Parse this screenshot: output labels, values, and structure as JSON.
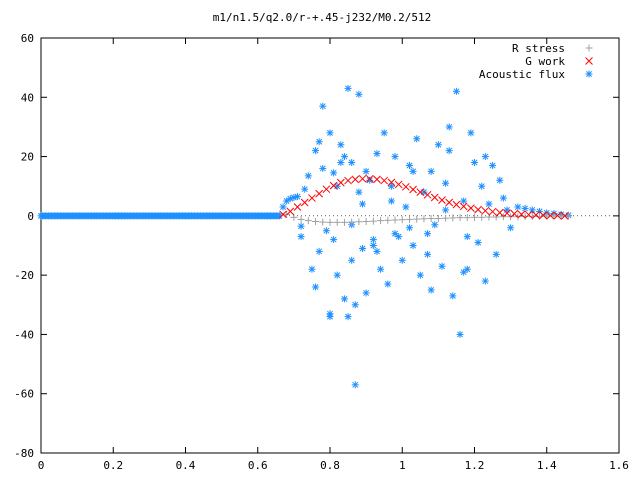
{
  "chart_data": {
    "type": "scatter",
    "title": "m1/n1.5/q2.0/r-+.45-j232/M0.2/512",
    "xlabel": "",
    "ylabel": "",
    "xlim": [
      0,
      1.6
    ],
    "ylim": [
      -80,
      60
    ],
    "x_ticks": [
      "0",
      "0.2",
      "0.4",
      "0.6",
      "0.8",
      "1",
      "1.2",
      "1.4",
      "1.6"
    ],
    "y_ticks": [
      "60",
      "40",
      "20",
      "0",
      "-20",
      "-40",
      "-60",
      "-80"
    ],
    "grid": false,
    "legend_placement": "top-right",
    "series": [
      {
        "name": "R stress",
        "marker": "plus",
        "color": "#a0a0a0",
        "x": [
          0.68,
          0.7,
          0.72,
          0.74,
          0.76,
          0.78,
          0.8,
          0.82,
          0.84,
          0.86,
          0.88,
          0.9,
          0.92,
          0.94,
          0.96,
          0.98,
          1.0,
          1.02,
          1.04,
          1.06,
          1.08,
          1.1,
          1.12,
          1.14,
          1.16,
          1.18,
          1.2,
          1.22,
          1.24,
          1.26,
          1.28,
          1.3,
          1.32,
          1.34,
          1.36,
          1.38,
          1.4,
          1.42,
          1.44,
          1.46
        ],
        "y": [
          0.5,
          -0.5,
          -1.2,
          -1.6,
          -1.9,
          -2.1,
          -2.2,
          -2.2,
          -2.2,
          -2.1,
          -2.0,
          -1.9,
          -1.8,
          -1.6,
          -1.5,
          -1.4,
          -1.3,
          -1.2,
          -1.1,
          -1.0,
          -0.9,
          -0.9,
          -0.8,
          -0.7,
          -0.6,
          -0.6,
          -0.5,
          -0.5,
          -0.4,
          -0.4,
          -0.3,
          -0.3,
          -0.3,
          -0.2,
          -0.2,
          -0.2,
          -0.1,
          -0.1,
          -0.1,
          0.0
        ]
      },
      {
        "name": "G work",
        "marker": "cross",
        "color": "#ff0000",
        "x": [
          0.67,
          0.69,
          0.71,
          0.73,
          0.75,
          0.77,
          0.79,
          0.81,
          0.83,
          0.85,
          0.87,
          0.89,
          0.91,
          0.93,
          0.95,
          0.97,
          0.99,
          1.01,
          1.03,
          1.05,
          1.07,
          1.09,
          1.11,
          1.13,
          1.15,
          1.17,
          1.19,
          1.21,
          1.23,
          1.25,
          1.27,
          1.29,
          1.31,
          1.33,
          1.35,
          1.37,
          1.39,
          1.41,
          1.43,
          1.45
        ],
        "y": [
          0.5,
          1.5,
          3.0,
          4.5,
          6.0,
          7.5,
          9.0,
          10.2,
          11.2,
          11.9,
          12.3,
          12.5,
          12.5,
          12.3,
          11.9,
          11.3,
          10.6,
          9.8,
          8.9,
          8.0,
          7.1,
          6.2,
          5.3,
          4.5,
          3.8,
          3.2,
          2.6,
          2.1,
          1.7,
          1.4,
          1.1,
          0.9,
          0.7,
          0.5,
          0.4,
          0.3,
          0.2,
          0.1,
          0.1,
          0.0
        ]
      },
      {
        "name": "Acoustic flux",
        "marker": "star",
        "color": "#1e90ff",
        "x": [
          0.67,
          0.68,
          0.69,
          0.7,
          0.71,
          0.72,
          0.74,
          0.75,
          0.76,
          0.77,
          0.78,
          0.79,
          0.8,
          0.8,
          0.81,
          0.82,
          0.82,
          0.83,
          0.84,
          0.85,
          0.85,
          0.86,
          0.86,
          0.87,
          0.88,
          0.88,
          0.89,
          0.9,
          0.9,
          0.91,
          0.92,
          0.93,
          0.94,
          0.95,
          0.96,
          0.97,
          0.98,
          0.99,
          1.0,
          1.01,
          1.02,
          1.03,
          1.04,
          1.05,
          1.06,
          1.07,
          1.08,
          1.09,
          1.1,
          1.11,
          1.12,
          1.13,
          1.14,
          1.15,
          1.16,
          1.17,
          1.18,
          1.19,
          1.2,
          1.21,
          1.22,
          1.23,
          1.24,
          1.25,
          1.26,
          1.27,
          1.28,
          1.29,
          1.3,
          1.32,
          1.34,
          1.36,
          1.38,
          1.4,
          1.42,
          1.44,
          1.46,
          0.72,
          0.76,
          0.78,
          0.81,
          0.84,
          0.87,
          0.92,
          0.97,
          1.02,
          1.07,
          1.12,
          1.17,
          0.73,
          0.77,
          0.8,
          0.83,
          0.86,
          0.89,
          0.93,
          0.98,
          1.03,
          1.08,
          1.13,
          1.18,
          1.23
        ],
        "y": [
          3.0,
          5.0,
          5.8,
          6.2,
          6.5,
          -3.5,
          13.5,
          -18.0,
          22.0,
          -12.0,
          37.0,
          -5.0,
          28.0,
          -33.0,
          14.5,
          -20.0,
          10.0,
          24.0,
          -28.0,
          43.0,
          -34.0,
          18.0,
          -15.0,
          -57.0,
          8.0,
          41.0,
          -11.0,
          15.0,
          -26.0,
          12.0,
          -8.0,
          21.0,
          -18.0,
          28.0,
          -23.0,
          5.0,
          20.0,
          -7.0,
          -15.0,
          3.0,
          17.0,
          -10.0,
          26.0,
          -20.0,
          8.0,
          -13.0,
          15.0,
          -3.0,
          24.0,
          -17.0,
          2.0,
          30.0,
          -27.0,
          42.0,
          -40.0,
          5.0,
          -18.0,
          28.0,
          18.0,
          -9.0,
          10.0,
          -22.0,
          4.0,
          17.0,
          -13.0,
          12.0,
          6.0,
          2.0,
          -4.0,
          3.0,
          2.5,
          2.0,
          1.5,
          1.0,
          0.8,
          0.5,
          0.2,
          -7.0,
          -24.0,
          16.0,
          -8.0,
          20.0,
          -30.0,
          -10.0,
          10.0,
          -4.0,
          -6.0,
          11.0,
          -19.0,
          9.0,
          25.0,
          -34.0,
          18.0,
          -3.0,
          4.0,
          -12.0,
          -6.0,
          15.0,
          -25.0,
          22.0,
          -7.0,
          20.0
        ]
      }
    ],
    "flat_series": {
      "name": "Acoustic flux",
      "x_range": [
        0.0,
        0.66
      ],
      "y": 0
    }
  }
}
